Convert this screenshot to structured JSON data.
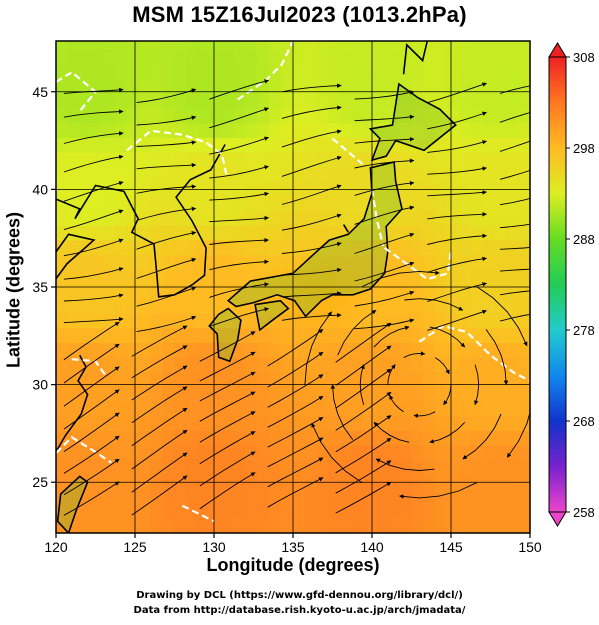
{
  "chart_data": {
    "type": "heatmap",
    "title": "MSM 15Z16Jul2023 (1013.2hPa)",
    "xlabel": "Longitude (degrees)",
    "ylabel": "Latitude  (degrees)",
    "xlim": [
      120,
      150
    ],
    "ylim": [
      22.4,
      47.6
    ],
    "x_ticks": [
      120,
      125,
      130,
      135,
      140,
      145,
      150
    ],
    "y_ticks": [
      25,
      30,
      35,
      40,
      45
    ],
    "grid": true,
    "colorbar": {
      "range": [
        258,
        308
      ],
      "ticks": [
        258,
        268,
        278,
        288,
        298,
        308
      ],
      "colors": [
        "#ee44cc",
        "#7722cc",
        "#1133cc",
        "#1188ee",
        "#22cccc",
        "#22cc55",
        "#66dd22",
        "#ddee22",
        "#ffbb22",
        "#ff7722",
        "#ee2222"
      ]
    },
    "temperature_samples": [
      {
        "lon": 122,
        "lat": 45,
        "value": 291
      },
      {
        "lon": 130,
        "lat": 45,
        "value": 291
      },
      {
        "lon": 140,
        "lat": 45,
        "value": 292
      },
      {
        "lon": 148,
        "lat": 45,
        "value": 292
      },
      {
        "lon": 122,
        "lat": 40,
        "value": 293
      },
      {
        "lon": 130,
        "lat": 40,
        "value": 294
      },
      {
        "lon": 140,
        "lat": 40,
        "value": 295
      },
      {
        "lon": 148,
        "lat": 40,
        "value": 294
      },
      {
        "lon": 122,
        "lat": 35,
        "value": 297
      },
      {
        "lon": 130,
        "lat": 35,
        "value": 298
      },
      {
        "lon": 140,
        "lat": 35,
        "value": 298
      },
      {
        "lon": 148,
        "lat": 35,
        "value": 296
      },
      {
        "lon": 122,
        "lat": 30,
        "value": 300
      },
      {
        "lon": 130,
        "lat": 30,
        "value": 301
      },
      {
        "lon": 140,
        "lat": 30,
        "value": 300
      },
      {
        "lon": 148,
        "lat": 30,
        "value": 299
      },
      {
        "lon": 122,
        "lat": 25,
        "value": 301
      },
      {
        "lon": 130,
        "lat": 25,
        "value": 302
      },
      {
        "lon": 140,
        "lat": 25,
        "value": 302
      },
      {
        "lon": 148,
        "lat": 25,
        "value": 301
      }
    ],
    "wind_field": "streamlines",
    "anticyclone_center": {
      "lon": 143,
      "lat": 30
    }
  },
  "credits": {
    "line1": "Drawing by DCL (https://www.gfd-dennou.org/library/dcl/)",
    "line2": "Data from http://database.rish.kyoto-u.ac.jp/arch/jmadata/"
  }
}
